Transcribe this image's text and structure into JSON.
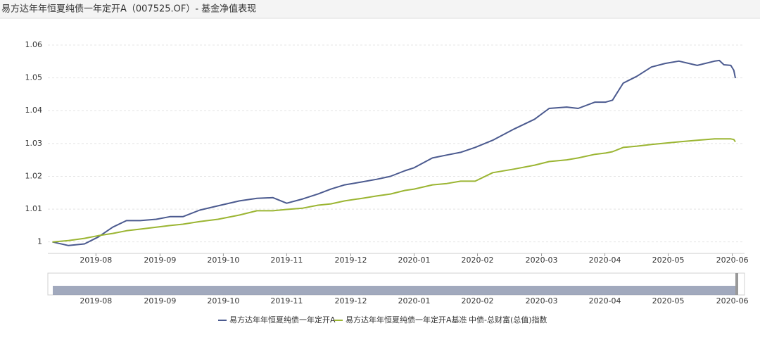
{
  "chart_data": {
    "type": "line",
    "title": "易方达年年恒夏纯债一年定开A（007525.OF）- 基金净值表现",
    "x": [
      2019.526,
      2019.547,
      2019.568,
      2019.586,
      2019.605,
      2019.623,
      2019.641,
      2019.662,
      2019.68,
      2019.697,
      2019.719,
      2019.743,
      2019.771,
      2019.794,
      2019.815,
      2019.833,
      2019.854,
      2019.874,
      2019.891,
      2019.909,
      2019.932,
      2019.951,
      2019.969,
      2019.988,
      2020.0,
      2020.024,
      2020.043,
      2020.061,
      2020.08,
      2020.103,
      2020.131,
      2020.158,
      2020.177,
      2020.2,
      2020.215,
      2020.237,
      2020.251,
      2020.26,
      2020.274,
      2020.292,
      2020.311,
      2020.329,
      2020.347,
      2020.371,
      2020.394,
      2020.4,
      2020.406,
      2020.415,
      2020.419,
      2020.421
    ],
    "series": [
      {
        "name": "易方达年年恒夏纯债一年定开A",
        "color": "#4b5a8f",
        "values": [
          1.0,
          0.9989,
          0.9994,
          1.0015,
          1.0045,
          1.0065,
          1.0065,
          1.0069,
          1.0077,
          1.0077,
          1.0097,
          1.011,
          1.0125,
          1.0133,
          1.0135,
          1.0118,
          1.0131,
          1.0146,
          1.0161,
          1.0174,
          1.0183,
          1.0191,
          1.02,
          1.0217,
          1.0226,
          1.0256,
          1.0265,
          1.0273,
          1.0288,
          1.031,
          1.0344,
          1.0374,
          1.0407,
          1.0411,
          1.0407,
          1.0426,
          1.0426,
          1.0432,
          1.0484,
          1.0505,
          1.0533,
          1.0544,
          1.0551,
          1.0538,
          1.0551,
          1.0553,
          1.054,
          1.0538,
          1.0523,
          1.0499
        ]
      },
      {
        "name": "易方达年年恒夏纯债一年定开A基准",
        "color": "#9bb532",
        "values": [
          1.0,
          1.0004,
          1.0011,
          1.0019,
          1.0026,
          1.0034,
          1.0039,
          1.0045,
          1.005,
          1.0054,
          1.0062,
          1.0069,
          1.0082,
          1.0095,
          1.0095,
          1.0099,
          1.0103,
          1.0112,
          1.0116,
          1.0125,
          1.0133,
          1.014,
          1.0146,
          1.0157,
          1.0161,
          1.0174,
          1.0178,
          1.0185,
          1.0185,
          1.0211,
          1.0222,
          1.0234,
          1.0245,
          1.025,
          1.0256,
          1.0267,
          1.0271,
          1.0275,
          1.0288,
          1.0292,
          1.0297,
          1.0301,
          1.0305,
          1.031,
          1.0314,
          1.0314,
          1.0314,
          1.0314,
          1.0312,
          1.0305
        ]
      }
    ],
    "hidden_series": [
      {
        "name": "中债-总财富(总值)指数",
        "color": "#cccccc"
      }
    ],
    "xlim": [
      2019.52,
      2020.433
    ],
    "xticks": [
      {
        "value": 2019.583,
        "label": "2019-08"
      },
      {
        "value": 2019.667,
        "label": "2019-09"
      },
      {
        "value": 2019.75,
        "label": "2019-10"
      },
      {
        "value": 2019.833,
        "label": "2019-11"
      },
      {
        "value": 2019.917,
        "label": "2019-12"
      },
      {
        "value": 2020.0,
        "label": "2020-01"
      },
      {
        "value": 2020.083,
        "label": "2020-02"
      },
      {
        "value": 2020.167,
        "label": "2020-03"
      },
      {
        "value": 2020.25,
        "label": "2020-04"
      },
      {
        "value": 2020.333,
        "label": "2020-05"
      },
      {
        "value": 2020.417,
        "label": "2020-06"
      }
    ],
    "ylim": [
      0.9965,
      1.06
    ],
    "yticks": [
      1,
      1.01,
      1.02,
      1.03,
      1.04,
      1.05,
      1.06
    ],
    "grid": true,
    "legend": "bottom"
  }
}
